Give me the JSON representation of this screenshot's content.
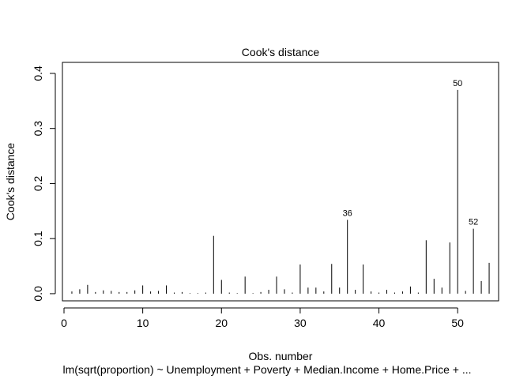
{
  "chart_data": {
    "type": "bar",
    "title": "Cook's distance",
    "xlabel": "Obs. number",
    "subtitle": "lm(sqrt(proportion) ~ Unemployment + Poverty + Median.Income + Home.Price + ...",
    "ylabel": "Cook's distance",
    "xlim": [
      -0.2,
      55.2
    ],
    "ylim": [
      -0.013,
      0.42
    ],
    "x_ticks": [
      0,
      10,
      20,
      30,
      40,
      50
    ],
    "y_ticks": [
      "0.0",
      "0.1",
      "0.2",
      "0.3",
      "0.4"
    ],
    "grid": false,
    "obs": [
      1,
      2,
      3,
      4,
      5,
      6,
      7,
      8,
      9,
      10,
      11,
      12,
      13,
      14,
      15,
      16,
      17,
      18,
      19,
      20,
      21,
      22,
      23,
      24,
      25,
      26,
      27,
      28,
      29,
      30,
      31,
      32,
      33,
      34,
      35,
      36,
      37,
      38,
      39,
      40,
      41,
      42,
      43,
      44,
      45,
      46,
      47,
      48,
      49,
      50,
      51,
      52,
      53,
      54
    ],
    "values": [
      0.004,
      0.008,
      0.016,
      0.003,
      0.006,
      0.005,
      0.003,
      0.003,
      0.006,
      0.015,
      0.004,
      0.005,
      0.015,
      0.002,
      0.003,
      0.001,
      0.001,
      0.002,
      0.105,
      0.025,
      0.002,
      0.001,
      0.031,
      0.001,
      0.003,
      0.007,
      0.031,
      0.008,
      0.002,
      0.053,
      0.011,
      0.011,
      0.004,
      0.054,
      0.011,
      0.134,
      0.007,
      0.053,
      0.004,
      0.002,
      0.007,
      0.002,
      0.004,
      0.013,
      0.002,
      0.097,
      0.027,
      0.011,
      0.093,
      0.37,
      0.005,
      0.118,
      0.023,
      0.056
    ],
    "labeled_points": [
      {
        "obs": 36,
        "label": "36"
      },
      {
        "obs": 50,
        "label": "50"
      },
      {
        "obs": 52,
        "label": "52"
      }
    ]
  }
}
